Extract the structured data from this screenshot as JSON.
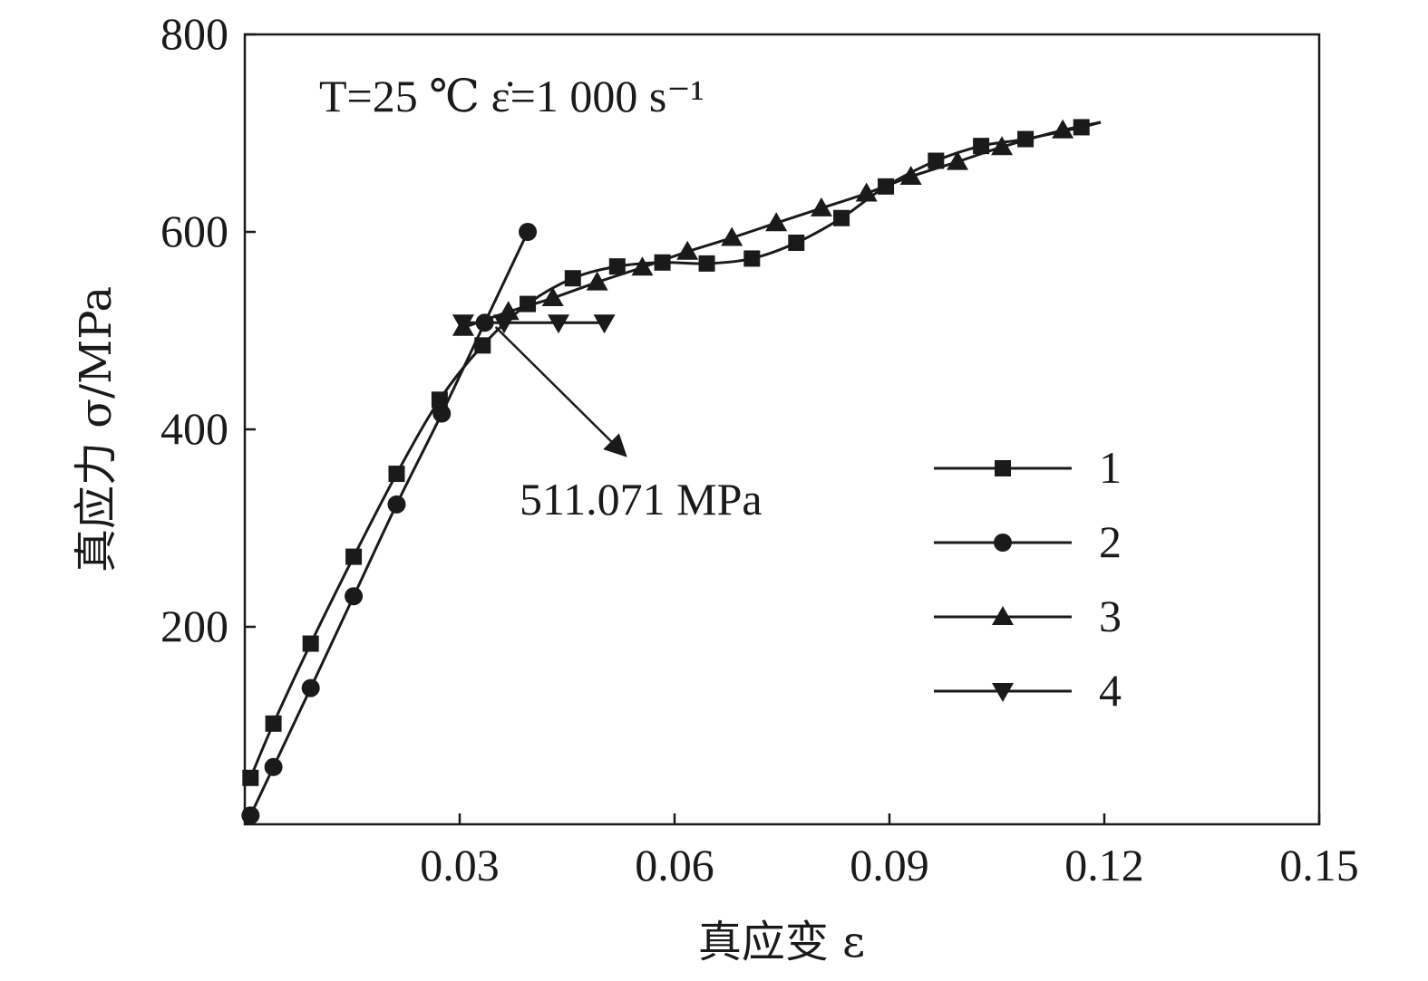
{
  "chart_data": {
    "type": "line",
    "title": "",
    "xlabel": "真应变 ε",
    "ylabel": "真应力 σ/MPa",
    "xlim": [
      0,
      0.15
    ],
    "ylim": [
      0,
      800
    ],
    "x_ticks": [
      "0.03",
      "0.06",
      "0.09",
      "0.12",
      "0.15"
    ],
    "x_tick_values": [
      0.03,
      0.06,
      0.09,
      0.12,
      0.15
    ],
    "y_ticks": [
      "200",
      "400",
      "600",
      "800"
    ],
    "y_tick_values": [
      200,
      400,
      600,
      800
    ],
    "grid": false,
    "legend_position": "right",
    "conditions": "T=25 ℃ ε̇=1 000 s⁻¹",
    "annotation": {
      "text": "511.071 MPa",
      "points_to": {
        "x": 0.034,
        "y": 511
      }
    },
    "series": [
      {
        "name": "1",
        "marker": "square",
        "x": [
          0.0008,
          0.004,
          0.0092,
          0.0152,
          0.0212,
          0.0272,
          0.0332,
          0.0395,
          0.0458,
          0.052,
          0.0583,
          0.0645,
          0.0708,
          0.077,
          0.0833,
          0.0895,
          0.0965,
          0.1028,
          0.109,
          0.1168
        ],
        "y": [
          47,
          102,
          183,
          271,
          355,
          430,
          485,
          527,
          553,
          565,
          569,
          568,
          573,
          589,
          614,
          646,
          672,
          687,
          694,
          706
        ],
        "curve_end_x": 0.1195,
        "curve_end_y": 711
      },
      {
        "name": "2",
        "marker": "circle",
        "x": [
          0.0008,
          0.004,
          0.0092,
          0.0152,
          0.0212,
          0.0275,
          0.0335,
          0.0395
        ],
        "y": [
          9,
          58,
          138,
          231,
          324,
          416,
          508,
          600
        ]
      },
      {
        "name": "3",
        "marker": "triangle-up",
        "x": [
          0.0305,
          0.0368,
          0.043,
          0.0492,
          0.0555,
          0.0618,
          0.068,
          0.0742,
          0.0805,
          0.0868,
          0.093,
          0.0995,
          0.1057,
          0.1142
        ],
        "y": [
          503,
          519,
          533,
          549,
          564,
          580,
          594,
          609,
          624,
          639,
          656,
          671,
          686,
          703
        ],
        "curve_end_x": 0.1195,
        "curve_end_y": 711
      },
      {
        "name": "4",
        "marker": "triangle-down",
        "x": [
          0.0305,
          0.0362,
          0.0438,
          0.0502
        ],
        "y": [
          508,
          508,
          508,
          508
        ]
      }
    ]
  }
}
